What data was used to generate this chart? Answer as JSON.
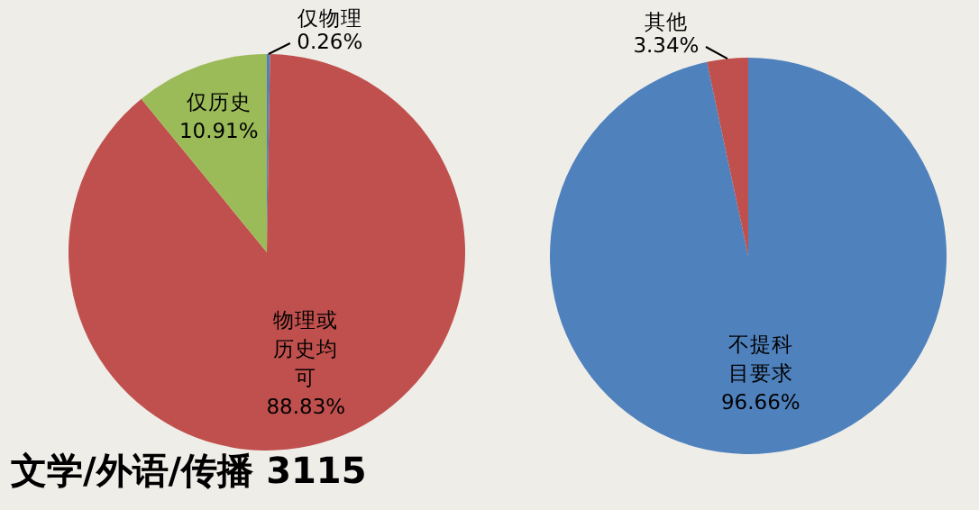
{
  "chart_data": [
    {
      "type": "pie",
      "title": "文学/外语/传播 3115",
      "categories": [
        "仅物理",
        "物理或历史均可",
        "仅历史"
      ],
      "values": [
        0.26,
        88.83,
        10.91
      ],
      "colors": [
        "#4f81bd",
        "#c0504d",
        "#9bbb59"
      ],
      "value_labels": [
        "0.26%",
        "88.83%",
        "10.91%"
      ]
    },
    {
      "type": "pie",
      "categories": [
        "不提科目要求",
        "其他"
      ],
      "values": [
        96.66,
        3.34
      ],
      "colors": [
        "#4f81bd",
        "#c0504d"
      ],
      "value_labels": [
        "96.66%",
        "3.34%"
      ]
    }
  ]
}
